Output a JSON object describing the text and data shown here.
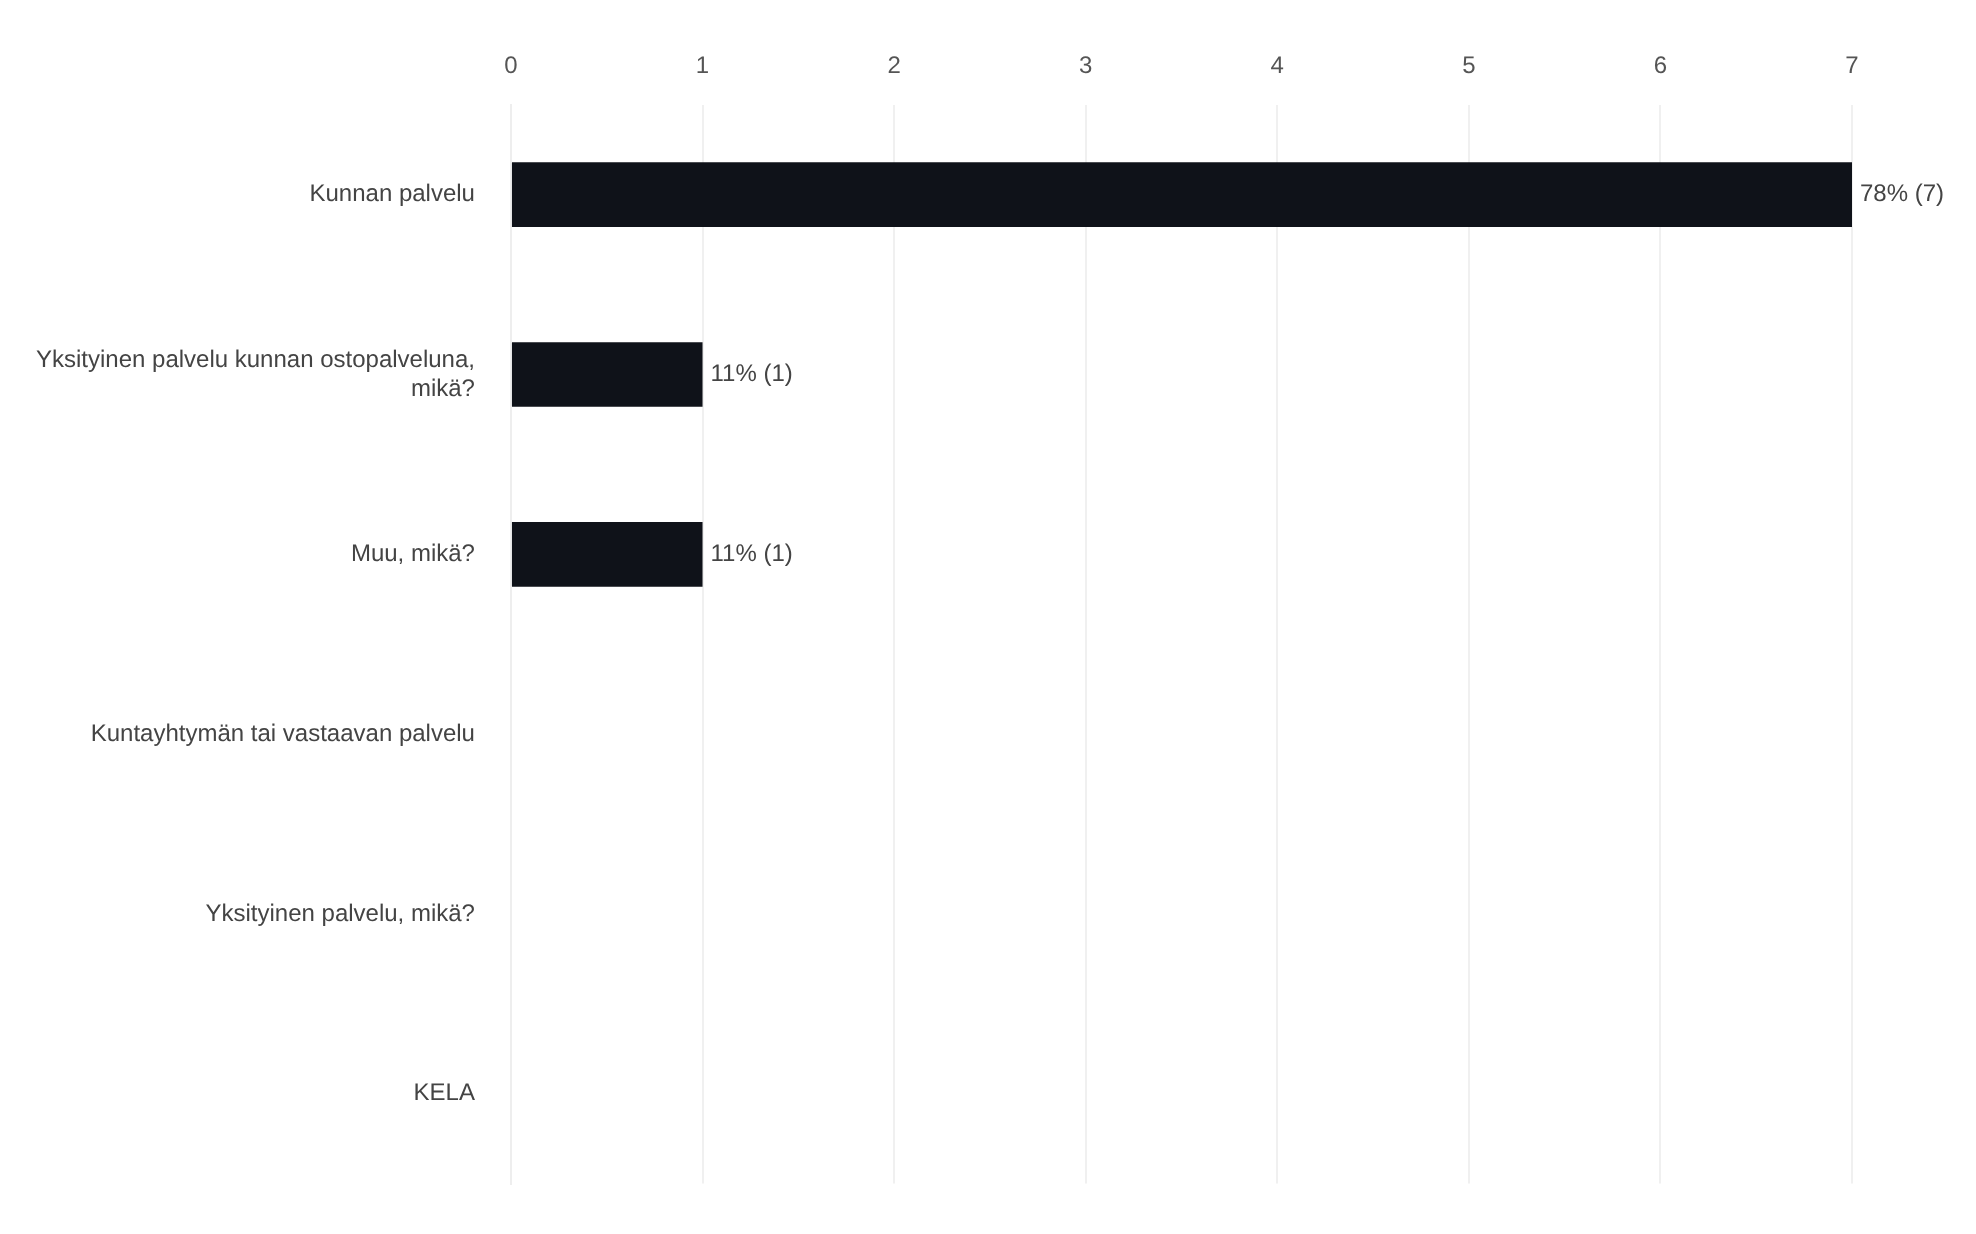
{
  "chart_data": {
    "type": "bar",
    "orientation": "horizontal",
    "categories": [
      "Kunnan palvelu",
      "Yksityinen palvelu kunnan ostopalveluna, mikä?",
      "Muu, mikä?",
      "Kuntayhtymän tai vastaavan palvelu",
      "Yksityinen palvelu, mikä?",
      "KELA"
    ],
    "values": [
      7,
      1,
      1,
      0,
      0,
      0
    ],
    "value_labels": [
      "78% (7)",
      "11% (1)",
      "11% (1)",
      null,
      null,
      null
    ],
    "color": "#0f1219",
    "xlim": [
      0,
      7
    ],
    "xticks": [
      0,
      1,
      2,
      3,
      4,
      5,
      6,
      7
    ],
    "grid": "x",
    "legend": false
  }
}
